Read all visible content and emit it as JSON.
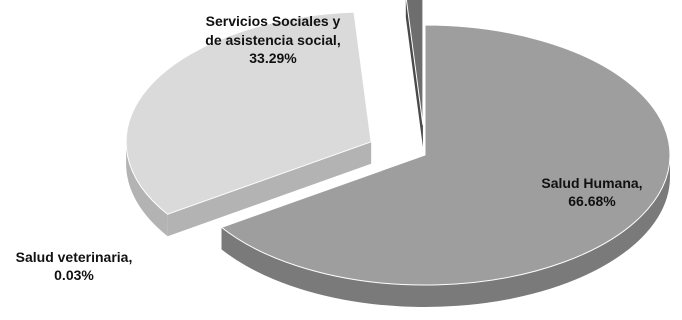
{
  "chart_data": {
    "type": "pie",
    "title": "",
    "slices": [
      {
        "label": "Salud Humana,",
        "value": 66.68,
        "value_label": "66.68%",
        "color": "#9e9e9e",
        "side_color": "#7a7a7a",
        "exploded": false
      },
      {
        "label": "Servicios Sociales y de asistencia social,",
        "value": 33.29,
        "value_label": "33.29%",
        "color": "#dadada",
        "side_color": "#b3b3b3",
        "exploded": true
      },
      {
        "label": "Salud veterinaria,",
        "value": 0.03,
        "value_label": "0.03%",
        "color": "#6e6e6e",
        "side_color": "#4a4a4a",
        "exploded": true
      }
    ],
    "labels": {
      "humana": {
        "line1": "Salud Humana,",
        "line2": "66.68%"
      },
      "servicios": {
        "line1": "Servicios Sociales y",
        "line2": "de asistencia social,",
        "line3": "33.29%"
      },
      "veterinaria": {
        "line1": "Salud veterinaria,",
        "line2": "0.03%"
      }
    },
    "style": "3d-exploded-pie",
    "legend": "none"
  }
}
